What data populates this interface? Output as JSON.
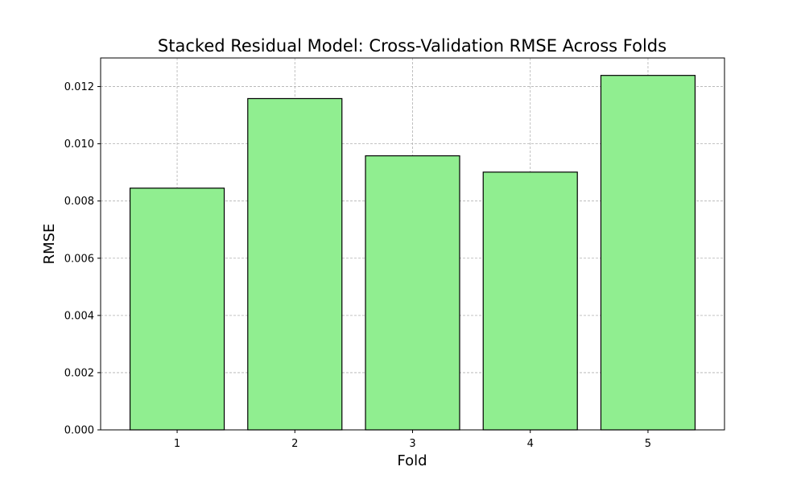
{
  "chart_data": {
    "type": "bar",
    "title": "Stacked Residual Model: Cross-Validation RMSE Across Folds",
    "xlabel": "Fold",
    "ylabel": "RMSE",
    "categories": [
      "1",
      "2",
      "3",
      "4",
      "5"
    ],
    "values": [
      0.00845,
      0.01158,
      0.00958,
      0.00901,
      0.01239
    ],
    "ylim": [
      0,
      0.013
    ],
    "yticks": [
      0.0,
      0.002,
      0.004,
      0.006,
      0.008,
      0.01,
      0.012
    ],
    "ytick_labels": [
      "0.000",
      "0.002",
      "0.004",
      "0.006",
      "0.008",
      "0.010",
      "0.012"
    ],
    "grid": true,
    "bar_color": "#90ee90",
    "edge_color": "#000000"
  }
}
